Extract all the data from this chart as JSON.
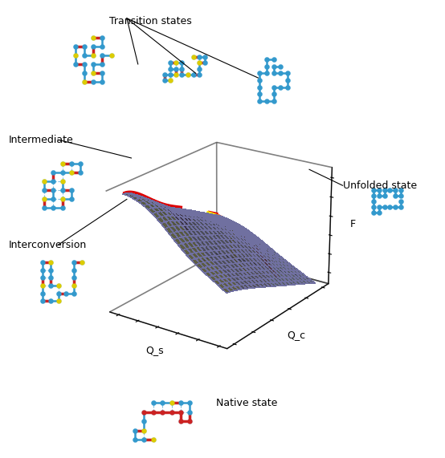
{
  "figsize": [
    5.54,
    5.71
  ],
  "dpi": 100,
  "background_color": "#ffffff",
  "labels": {
    "transition_states": "Transition states",
    "intermediate": "Intermediate",
    "interconversion": "Interconversion",
    "unfolded_state": "Unfolded state",
    "native_state": "Native state",
    "Qs": "Q_s",
    "Qc": "Q_c",
    "F": "F"
  },
  "font_size_labels": 9,
  "font_size_axis": 9,
  "red_path_color": "#dd0000",
  "yellow_path_color": "#ffee00",
  "surface_edge_color": "#7070a0",
  "box_edge_color": "#000000",
  "annotation_line_color": "#000000"
}
